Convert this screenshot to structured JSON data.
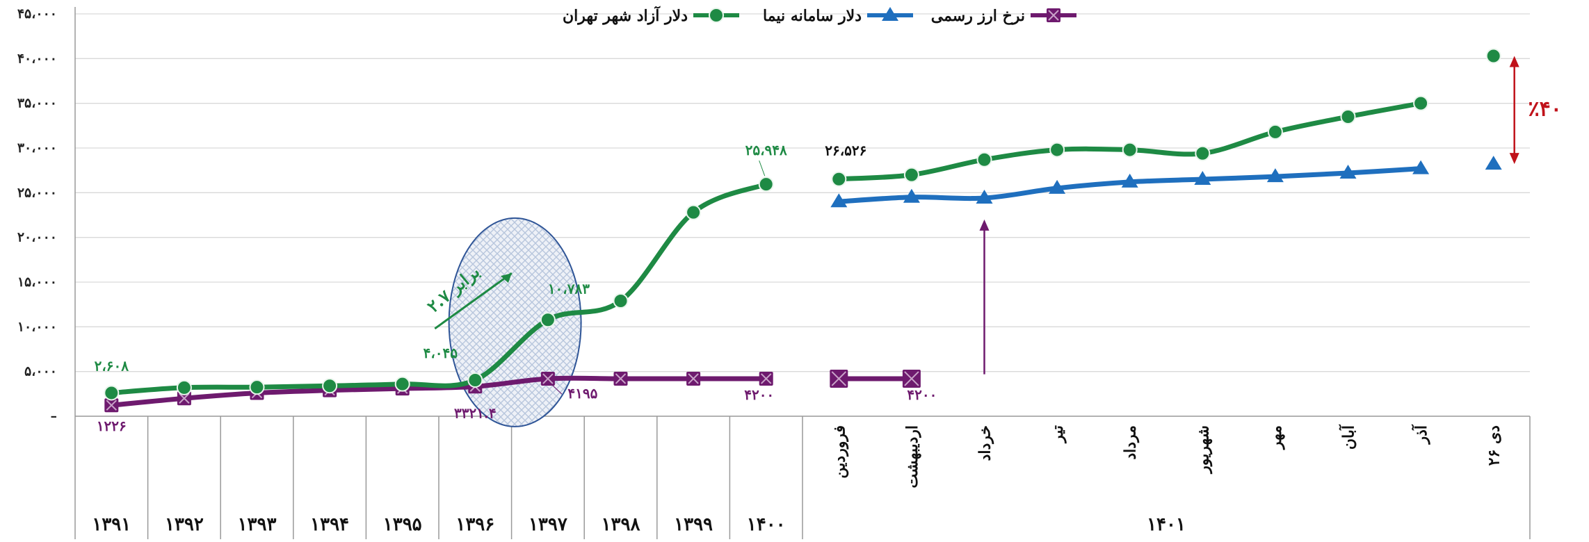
{
  "chart_data": {
    "type": "line",
    "ylim": [
      0,
      45000
    ],
    "y_ticks": [
      "–",
      "۵،۰۰۰",
      "۱۰،۰۰۰",
      "۱۵،۰۰۰",
      "۲۰،۰۰۰",
      "۲۵،۰۰۰",
      "۳۰،۰۰۰",
      "۳۵،۰۰۰",
      "۴۰،۰۰۰",
      "۴۵،۰۰۰"
    ],
    "grid": true,
    "legend_position": "top",
    "categories": [
      "۱۳۹۱",
      "۱۳۹۲",
      "۱۳۹۳",
      "۱۳۹۴",
      "۱۳۹۵",
      "۱۳۹۶",
      "۱۳۹۷",
      "۱۳۹۸",
      "۱۳۹۹",
      "۱۴۰۰",
      "فروردین",
      "اردیبهشت",
      "خرداد",
      "تیر",
      "مرداد",
      "شهریور",
      "مهر",
      "آبان",
      "آذر",
      "۲۶ دی"
    ],
    "group_labels": [
      {
        "label": "۱۳۹۱",
        "from": 0,
        "to": 0
      },
      {
        "label": "۱۳۹۲",
        "from": 1,
        "to": 1
      },
      {
        "label": "۱۳۹۳",
        "from": 2,
        "to": 2
      },
      {
        "label": "۱۳۹۴",
        "from": 3,
        "to": 3
      },
      {
        "label": "۱۳۹۵",
        "from": 4,
        "to": 4
      },
      {
        "label": "۱۳۹۶",
        "from": 5,
        "to": 5
      },
      {
        "label": "۱۳۹۷",
        "from": 6,
        "to": 6
      },
      {
        "label": "۱۳۹۸",
        "from": 7,
        "to": 7
      },
      {
        "label": "۱۳۹۹",
        "from": 8,
        "to": 8
      },
      {
        "label": "۱۴۰۰",
        "from": 9,
        "to": 9
      },
      {
        "label": "۱۴۰۱",
        "from": 10,
        "to": 19
      }
    ],
    "series": [
      {
        "name": "دلار آزاد شهر تهران",
        "color": "#1e8a44",
        "marker": "circle",
        "values": [
          2608,
          3200,
          3250,
          3400,
          3600,
          4045,
          10783,
          12900,
          22800,
          25948,
          26526,
          27000,
          28700,
          29800,
          29800,
          29400,
          31800,
          33500,
          35000,
          40300
        ]
      },
      {
        "name": "دلار سامانه نیما",
        "color": "#1f6fbe",
        "marker": "triangle",
        "values": [
          null,
          null,
          null,
          null,
          null,
          null,
          null,
          null,
          null,
          null,
          24000,
          24500,
          24400,
          25500,
          26200,
          26500,
          26800,
          27200,
          27700,
          28200
        ]
      },
      {
        "name": "نرخ ارز رسمی",
        "color": "#6e1a6e",
        "marker": "square-x",
        "values": [
          1226,
          2000,
          2600,
          2900,
          3100,
          3321.4,
          4195,
          4200,
          4200,
          4200,
          4200,
          4200,
          null,
          null,
          null,
          null,
          null,
          null,
          null,
          null
        ]
      }
    ],
    "data_labels": [
      {
        "series": 0,
        "index": 0,
        "text": "۲،۶۰۸"
      },
      {
        "series": 0,
        "index": 5,
        "text": "۴،۰۴۵"
      },
      {
        "series": 0,
        "index": 6,
        "text": "۱۰،۷۸۳"
      },
      {
        "series": 0,
        "index": 9,
        "text": "۲۵،۹۴۸"
      },
      {
        "series": 0,
        "index": 10,
        "text": "۲۶،۵۲۶"
      },
      {
        "series": 2,
        "index": 0,
        "text": "۱۲۲۶"
      },
      {
        "series": 2,
        "index": 5,
        "text": "۳۳۲۱.۴"
      },
      {
        "series": 2,
        "index": 6,
        "text": "۴۱۹۵"
      },
      {
        "series": 2,
        "index": 9,
        "text": "۴۲۰۰"
      },
      {
        "series": 2,
        "index": 11,
        "text": "۴۲۰۰"
      }
    ],
    "annotations": {
      "growth_label": "۲.۷ برابر",
      "gap_label": "٪۴۰",
      "colors": {
        "growth": "#1e8a44",
        "gap": "#c0121a",
        "pointer": "#6e1a6e",
        "ellipse_fill": "#b7c6dd",
        "ellipse_stroke": "#2f5597"
      }
    }
  }
}
